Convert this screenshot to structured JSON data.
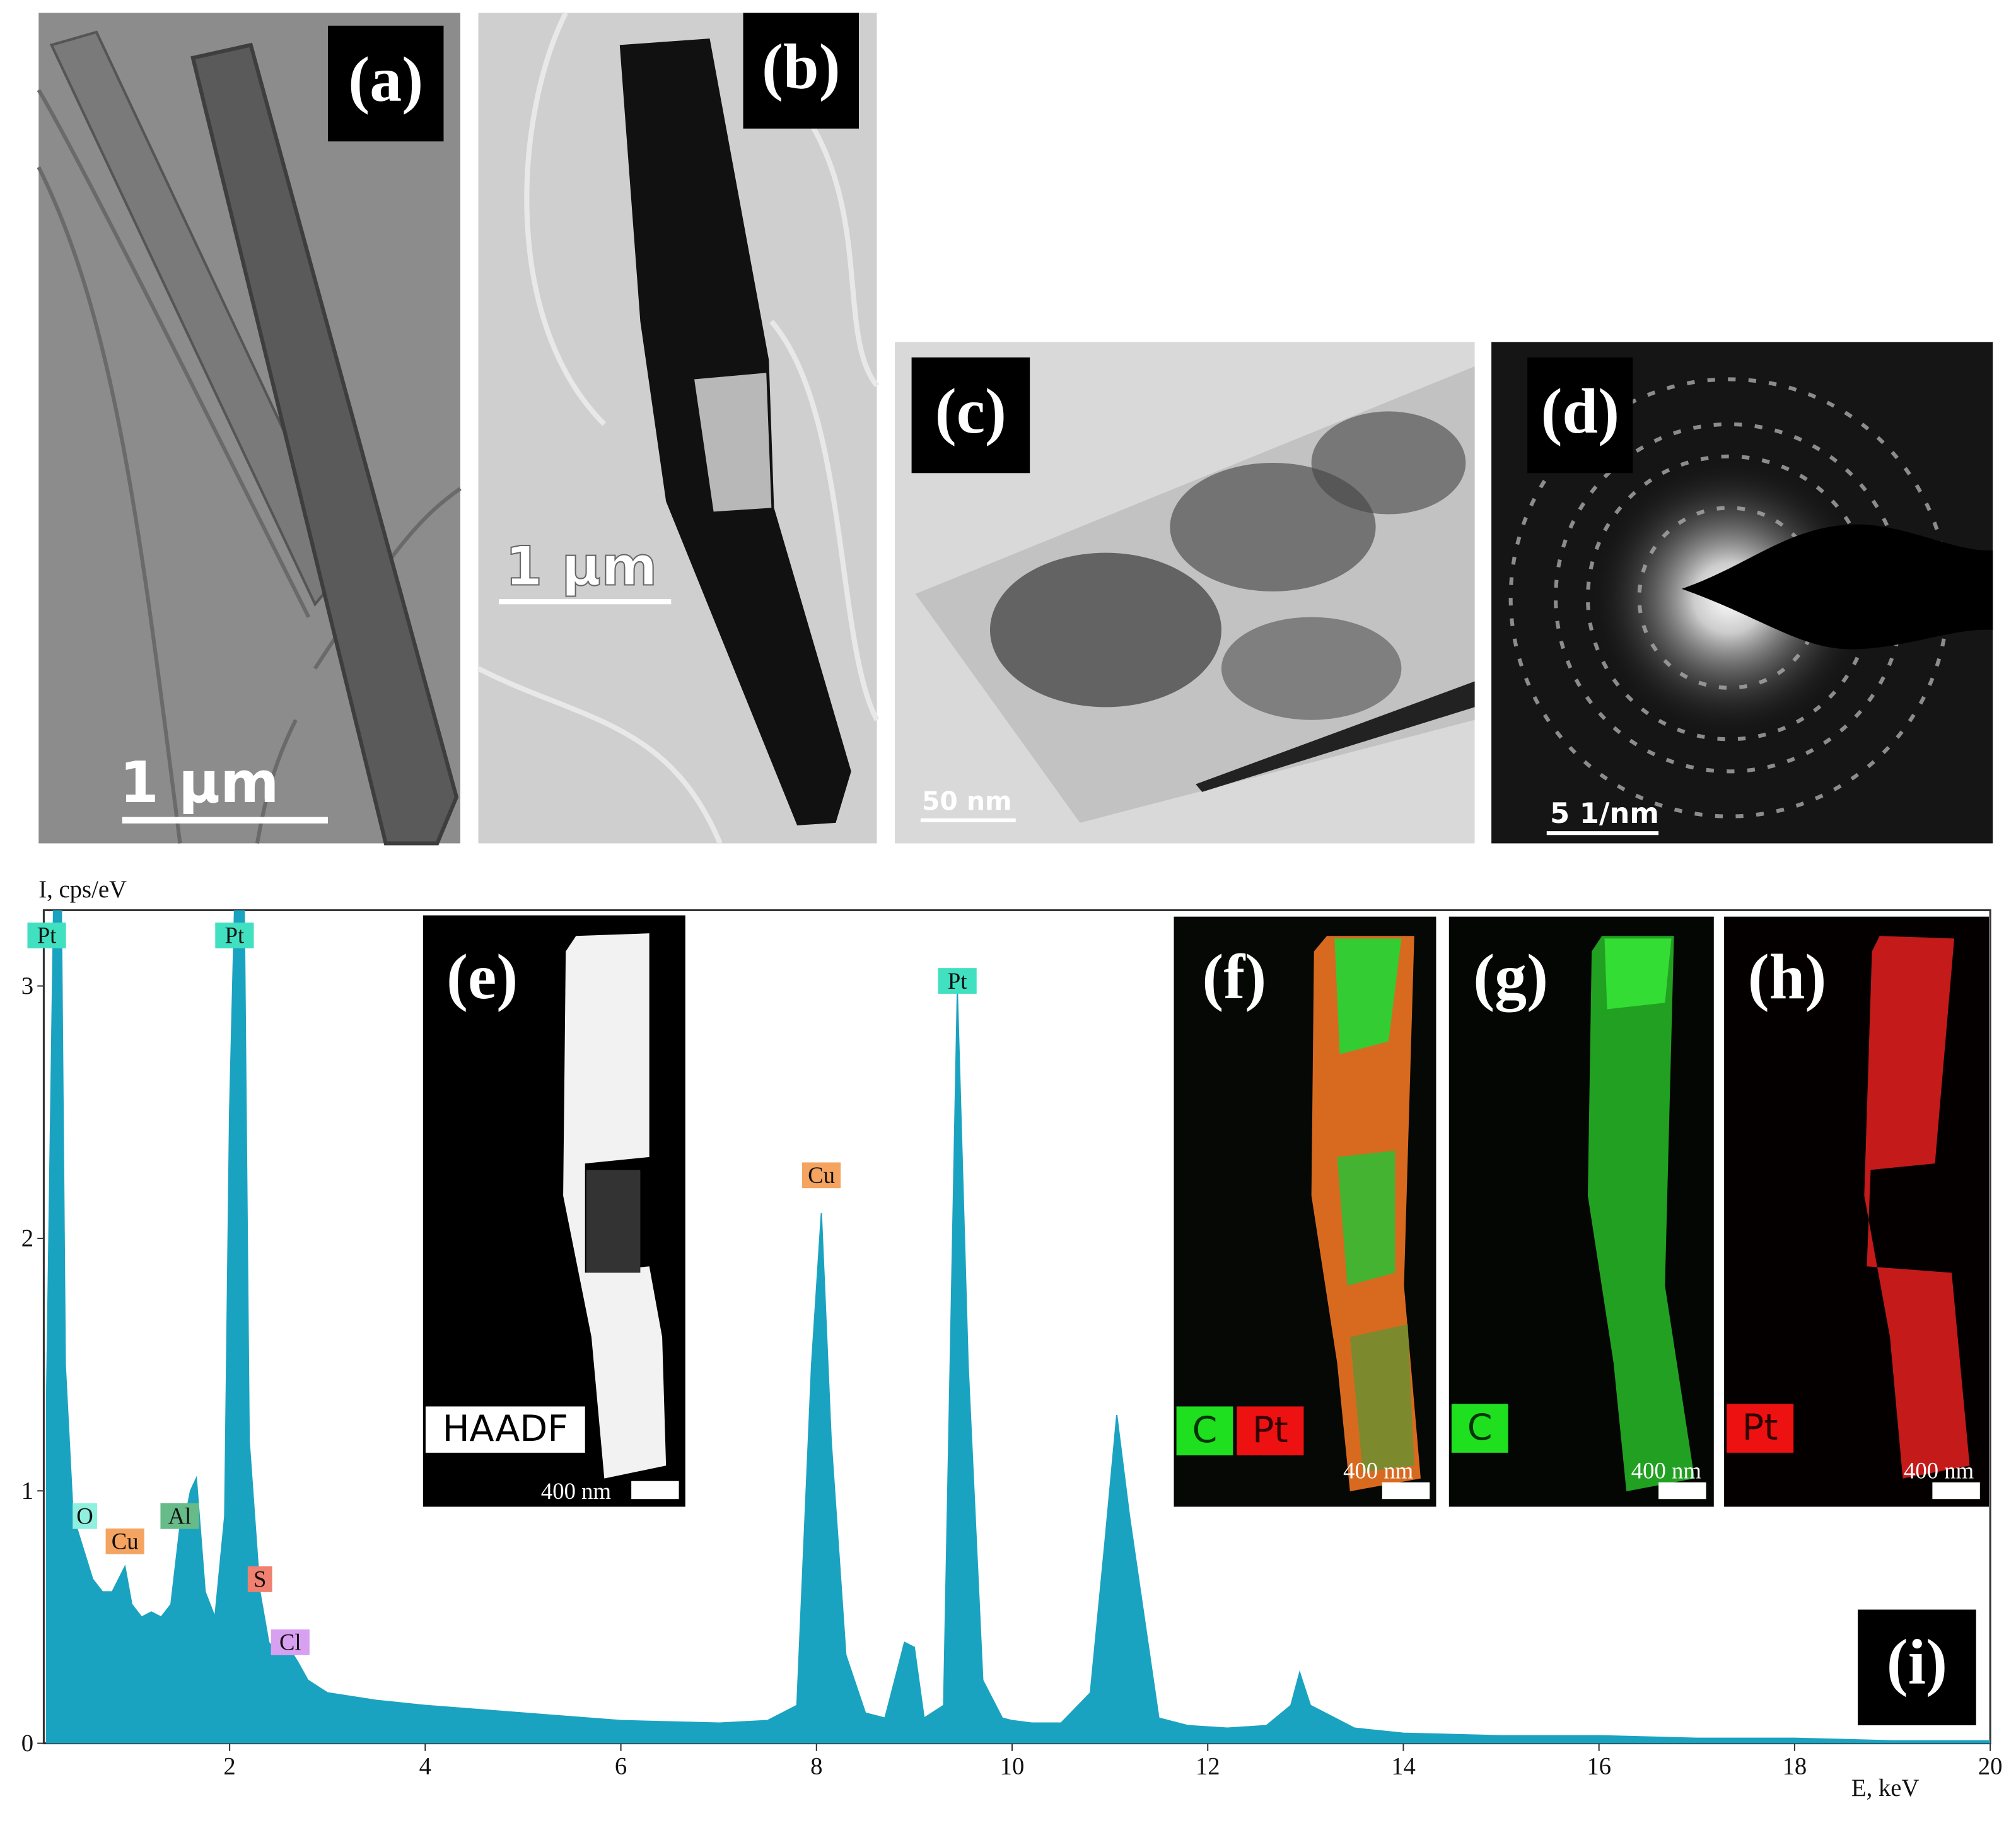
{
  "panels": [
    {
      "label": "(a)",
      "scale_bar": "1 µm"
    },
    {
      "label": "(b)",
      "scale_bar": "1 µm"
    },
    {
      "label": "(c)",
      "scale_bar": "50 nm"
    },
    {
      "label": "(d)",
      "scale_bar": "5 1/nm"
    },
    {
      "label": "(e)",
      "scale_bar": "400 nm",
      "tags": [
        "HAADF"
      ]
    },
    {
      "label": "(f)",
      "scale_bar": "400 nm",
      "tags": [
        "C",
        "Pt"
      ]
    },
    {
      "label": "(g)",
      "scale_bar": "400 nm",
      "tags": [
        "C"
      ]
    },
    {
      "label": "(h)",
      "scale_bar": "400 nm",
      "tags": [
        "Pt"
      ]
    },
    {
      "label": "(i)"
    }
  ],
  "chart_data": {
    "type": "area",
    "y_label": "I, cps/eV",
    "x_label": "E, keV",
    "color": "#1aa3c0",
    "x": [
      0.13,
      0.2,
      0.25,
      0.28,
      0.32,
      0.4,
      0.52,
      0.6,
      0.7,
      0.8,
      0.93,
      1.0,
      1.1,
      1.2,
      1.3,
      1.4,
      1.49,
      1.55,
      1.6,
      1.66,
      1.75,
      1.85,
      1.95,
      2.0,
      2.05,
      2.1,
      2.15,
      2.2,
      2.31,
      2.4,
      2.5,
      2.62,
      2.7,
      2.8,
      3.0,
      3.5,
      4,
      5,
      6,
      7,
      7.5,
      7.8,
      7.95,
      8.05,
      8.15,
      8.3,
      8.5,
      8.7,
      8.9,
      9.0,
      9.1,
      9.3,
      9.44,
      9.55,
      9.7,
      9.9,
      10.0,
      10.2,
      10.5,
      10.8,
      10.95,
      11.07,
      11.2,
      11.35,
      11.5,
      11.8,
      12.2,
      12.6,
      12.85,
      12.94,
      13.05,
      13.3,
      13.5,
      14,
      15,
      16,
      17,
      18,
      19,
      20
    ],
    "values": [
      1.4,
      3.3,
      3.3,
      3.3,
      1.5,
      0.9,
      0.75,
      0.65,
      0.6,
      0.6,
      0.7,
      0.55,
      0.5,
      0.52,
      0.5,
      0.55,
      0.85,
      0.9,
      1.0,
      1.05,
      0.6,
      0.5,
      0.9,
      2.5,
      3.3,
      3.3,
      3.3,
      1.2,
      0.6,
      0.4,
      0.35,
      0.37,
      0.32,
      0.25,
      0.2,
      0.17,
      0.15,
      0.12,
      0.09,
      0.08,
      0.09,
      0.15,
      1.5,
      2.1,
      1.2,
      0.35,
      0.12,
      0.1,
      0.4,
      0.38,
      0.1,
      0.15,
      2.98,
      1.5,
      0.25,
      0.1,
      0.09,
      0.08,
      0.08,
      0.2,
      0.8,
      1.3,
      0.9,
      0.5,
      0.1,
      0.07,
      0.06,
      0.07,
      0.15,
      0.28,
      0.15,
      0.1,
      0.06,
      0.04,
      0.03,
      0.03,
      0.02,
      0.02,
      0.01,
      0.01
    ],
    "xlim": [
      0.1,
      20
    ],
    "ylim": [
      0,
      3.3
    ],
    "xticks": [
      2,
      4,
      6,
      8,
      10,
      12,
      14,
      16,
      18,
      20
    ],
    "yticks": [
      0,
      1,
      2,
      3
    ],
    "annotations": [
      {
        "text": "Pt",
        "x": 0.13,
        "y": 3.2,
        "color": "#40e0c0"
      },
      {
        "text": "O",
        "x": 0.52,
        "y": 0.9,
        "color": "#8ff0e0"
      },
      {
        "text": "Cu",
        "x": 0.93,
        "y": 0.8,
        "color": "#f4a460"
      },
      {
        "text": "Al",
        "x": 1.49,
        "y": 0.9,
        "color": "#66bb88"
      },
      {
        "text": "Pt",
        "x": 2.05,
        "y": 3.2,
        "color": "#40e0c0"
      },
      {
        "text": "S",
        "x": 2.31,
        "y": 0.65,
        "color": "#f08070"
      },
      {
        "text": "Cl",
        "x": 2.62,
        "y": 0.4,
        "color": "#d8a0f0"
      },
      {
        "text": "Cu",
        "x": 8.05,
        "y": 2.25,
        "color": "#f4a460"
      },
      {
        "text": "Pt",
        "x": 9.44,
        "y": 3.02,
        "color": "#40e0c0"
      }
    ]
  }
}
